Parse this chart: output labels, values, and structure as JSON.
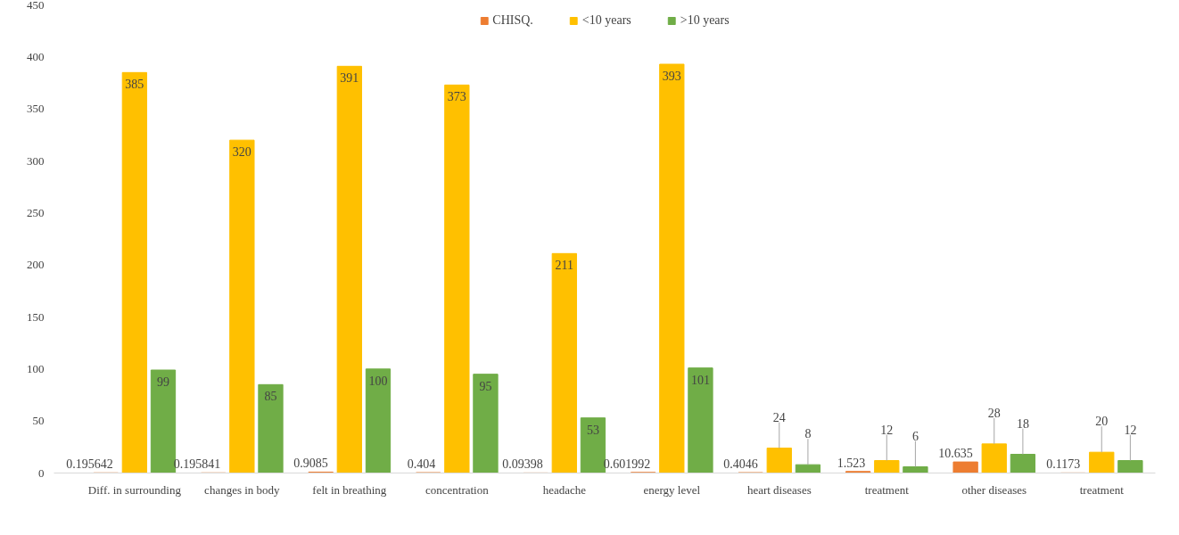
{
  "chart_data": {
    "type": "bar",
    "categories": [
      "Diff. in surrounding",
      "changes in body",
      "felt in breathing",
      "concentration",
      "headache",
      "energy level",
      "heart diseases",
      "treatment",
      "other diseases",
      "treatment"
    ],
    "series": [
      {
        "name": "CHISQ.",
        "color": "#ed7d31",
        "values": [
          0.195642,
          0.195841,
          0.9085,
          0.404,
          0.09398,
          0.601992,
          0.4046,
          1.523,
          10.635,
          0.1173
        ]
      },
      {
        "name": "<10 years",
        "color": "#ffc000",
        "values": [
          385,
          320,
          391,
          373,
          211,
          393,
          24,
          12,
          28,
          20
        ]
      },
      {
        "name": ">10 years",
        "color": "#70ad47",
        "values": [
          99,
          85,
          100,
          95,
          53,
          101,
          8,
          6,
          18,
          12
        ]
      }
    ],
    "ylim": [
      0,
      450
    ],
    "yticks": [
      0,
      50,
      100,
      150,
      200,
      250,
      300,
      350,
      400,
      450
    ],
    "grid": false,
    "legend": "top",
    "data_labels": true
  }
}
